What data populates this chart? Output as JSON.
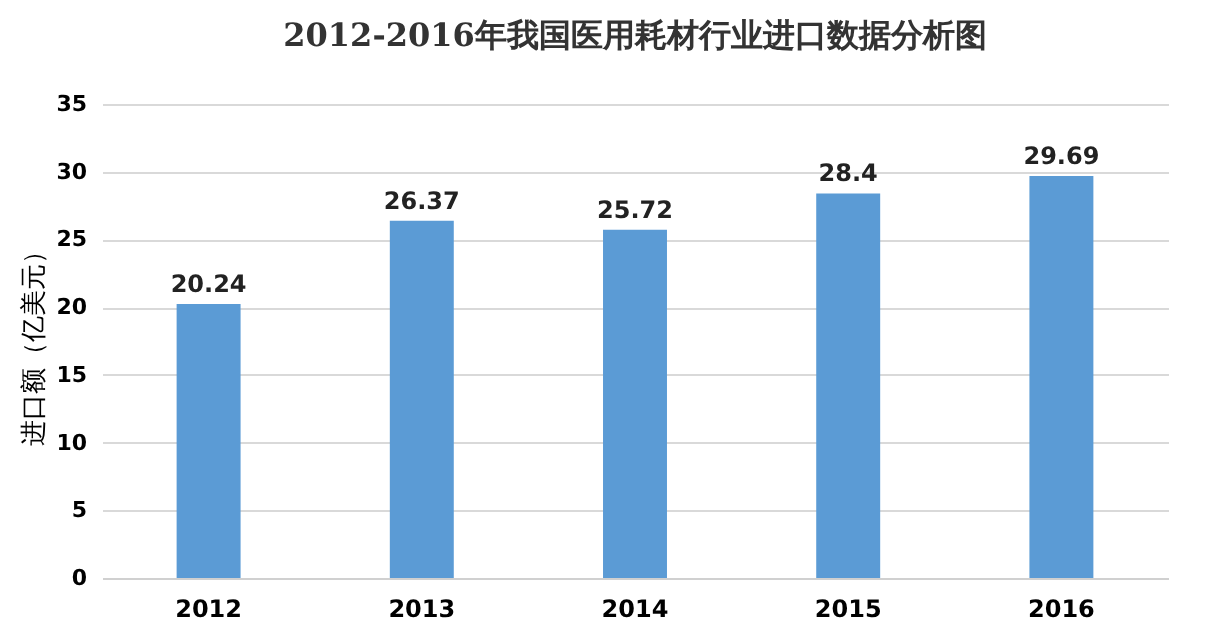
{
  "chart_data": {
    "type": "bar",
    "title": "2012-2016年我国医用耗材行业进口数据分析图",
    "ylabel": "进口额（亿美元）",
    "categories": [
      "2012",
      "2013",
      "2014",
      "2015",
      "2016"
    ],
    "values": [
      20.24,
      26.37,
      25.72,
      28.4,
      29.69
    ],
    "color": "#5b9bd5",
    "ylim": [
      0,
      35
    ],
    "yticks": [
      0,
      5,
      10,
      15,
      20,
      25,
      30,
      35
    ],
    "grid": "y",
    "data_labels": true
  }
}
